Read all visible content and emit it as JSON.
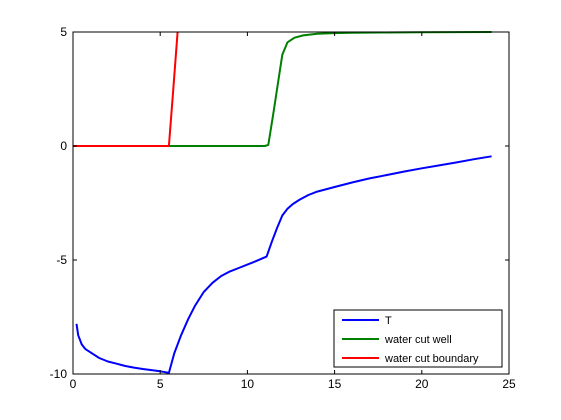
{
  "chart_data": {
    "type": "line",
    "title": "",
    "xlabel": "",
    "ylabel": "",
    "xlim": [
      0,
      25
    ],
    "ylim": [
      -10,
      5
    ],
    "xticks": [
      0,
      5,
      10,
      15,
      20,
      25
    ],
    "yticks": [
      -10,
      -5,
      0,
      5
    ],
    "xtick_labels": [
      "0",
      "5",
      "10",
      "15",
      "20",
      "25"
    ],
    "ytick_labels": [
      "-10",
      "-5",
      "0",
      "5"
    ],
    "grid": false,
    "legend_position": "bottom-right",
    "series": [
      {
        "name": "T",
        "color": "#0000ff",
        "x": [
          0.2,
          0.3,
          0.5,
          0.7,
          1.0,
          1.5,
          2.0,
          2.5,
          3.0,
          3.5,
          4.0,
          4.5,
          5.0,
          5.3,
          5.5,
          5.8,
          6.2,
          6.6,
          7.0,
          7.5,
          8.0,
          8.5,
          9.0,
          9.5,
          10.0,
          10.5,
          11.1,
          11.4,
          11.7,
          12.0,
          12.3,
          12.6,
          13.0,
          13.5,
          14.0,
          15.0,
          16.0,
          17.0,
          18.0,
          19.0,
          20.0,
          21.0,
          22.0,
          23.0,
          24.0
        ],
        "y": [
          -7.8,
          -8.3,
          -8.7,
          -8.9,
          -9.05,
          -9.3,
          -9.45,
          -9.55,
          -9.65,
          -9.72,
          -9.78,
          -9.83,
          -9.88,
          -9.92,
          -9.95,
          -9.1,
          -8.3,
          -7.6,
          -7.0,
          -6.4,
          -6.0,
          -5.7,
          -5.5,
          -5.35,
          -5.2,
          -5.05,
          -4.85,
          -4.2,
          -3.6,
          -3.05,
          -2.75,
          -2.55,
          -2.35,
          -2.15,
          -2.0,
          -1.8,
          -1.6,
          -1.42,
          -1.27,
          -1.12,
          -0.98,
          -0.85,
          -0.72,
          -0.58,
          -0.45
        ]
      },
      {
        "name": "water cut well",
        "color": "#008000",
        "x": [
          0,
          11.0,
          11.2,
          11.5,
          11.8,
          12.0,
          12.3,
          12.7,
          13.2,
          14.0,
          15.0,
          16.0,
          18.0,
          20.0,
          24.0
        ],
        "y": [
          0,
          0,
          0.05,
          1.5,
          3.0,
          4.0,
          4.55,
          4.75,
          4.85,
          4.92,
          4.95,
          4.97,
          4.98,
          4.99,
          5.0
        ]
      },
      {
        "name": "water cut boundary",
        "color": "#ff0000",
        "x": [
          0,
          5.5,
          5.75,
          6.0
        ],
        "y": [
          0,
          0,
          2.5,
          5.0
        ]
      }
    ]
  }
}
